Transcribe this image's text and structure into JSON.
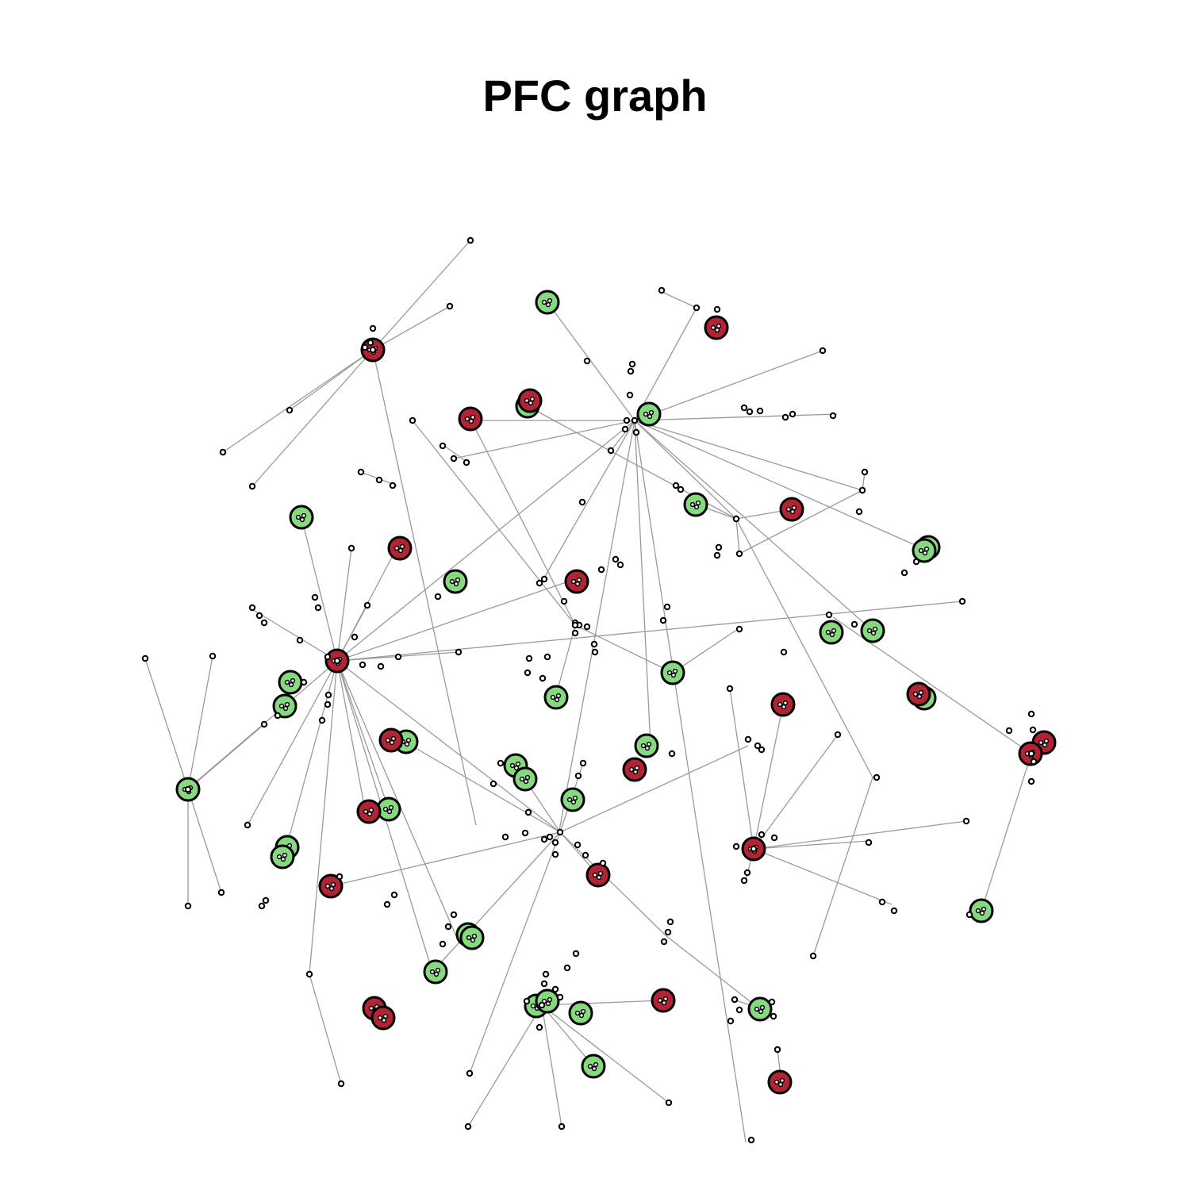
{
  "title": "PFC graph",
  "colors": {
    "red_node": "#b22434",
    "green_node": "#86d97f",
    "edge": "#9a9a9a",
    "small_node_fill": "#ffffff",
    "node_outline": "#000000"
  },
  "node_groups": {
    "red": "red-node",
    "green": "green-node",
    "small": "small-node"
  }
}
